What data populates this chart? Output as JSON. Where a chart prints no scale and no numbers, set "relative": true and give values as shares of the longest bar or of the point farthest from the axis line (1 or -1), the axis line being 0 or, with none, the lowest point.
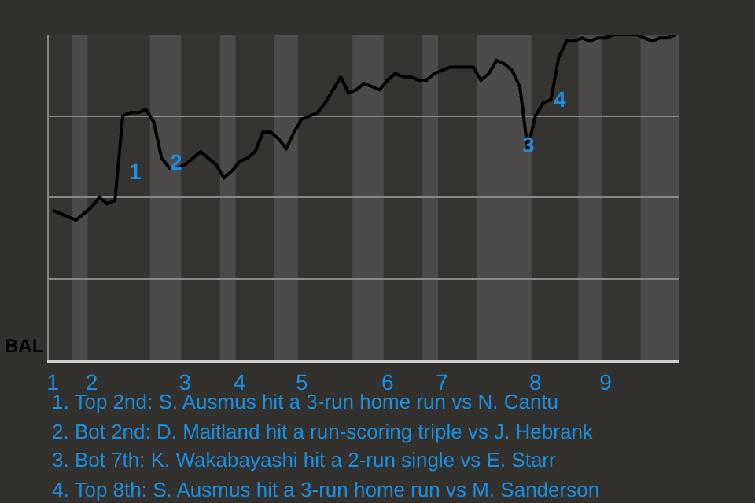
{
  "chart_data": {
    "type": "line",
    "relative": true,
    "ylabel": "BAL",
    "categories": [
      "1",
      null,
      null,
      null,
      null,
      "2",
      null,
      null,
      null,
      null,
      null,
      null,
      null,
      null,
      null,
      null,
      null,
      "3",
      null,
      null,
      null,
      null,
      null,
      null,
      "4",
      null,
      null,
      null,
      null,
      null,
      null,
      null,
      "5",
      null,
      null,
      null,
      null,
      null,
      null,
      null,
      null,
      null,
      null,
      "6",
      null,
      null,
      null,
      null,
      null,
      null,
      "7",
      null,
      null,
      null,
      null,
      null,
      null,
      null,
      null,
      null,
      null,
      null,
      "8",
      null,
      null,
      null,
      null,
      null,
      null,
      null,
      null,
      "9",
      null,
      null,
      null,
      null,
      null,
      null,
      null,
      null,
      null
    ],
    "series": [
      {
        "color": "#000000",
        "values": [
          0.46,
          0.45,
          0.44,
          0.43,
          0.45,
          0.47,
          0.5,
          0.48,
          0.49,
          0.75,
          0.76,
          0.76,
          0.77,
          0.73,
          0.62,
          0.59,
          0.59,
          0.6,
          0.62,
          0.64,
          0.62,
          0.6,
          0.56,
          0.58,
          0.61,
          0.62,
          0.64,
          0.7,
          0.7,
          0.68,
          0.65,
          0.7,
          0.74,
          0.75,
          0.76,
          0.79,
          0.83,
          0.87,
          0.82,
          0.83,
          0.85,
          0.84,
          0.83,
          0.86,
          0.88,
          0.87,
          0.87,
          0.86,
          0.86,
          0.88,
          0.89,
          0.9,
          0.9,
          0.9,
          0.9,
          0.86,
          0.88,
          0.92,
          0.91,
          0.89,
          0.84,
          0.65,
          0.75,
          0.79,
          0.8,
          0.93,
          0.98,
          0.98,
          0.99,
          0.98,
          0.99,
          0.99,
          1.0,
          1.0,
          1.0,
          1.0,
          0.99,
          0.98,
          0.99,
          0.99,
          1.0
        ]
      }
    ],
    "tick_labels": "x",
    "grid": "y",
    "marker": "none",
    "line_style": "solid",
    "annotations": [
      "1",
      "2",
      "3",
      "4",
      "1. Top 2nd: S. Ausmus hit a 3-run home run vs N. Cantu",
      "2. Bot 2nd: D. Maitland hit a run-scoring triple vs J. Hebrank",
      "3. Bot 7th: K. Wakabayashi hit a 2-run single vs E. Starr",
      "4. Top 8th: S. Ausmus hit a 3-run home run vs M. Sanderson"
    ]
  }
}
